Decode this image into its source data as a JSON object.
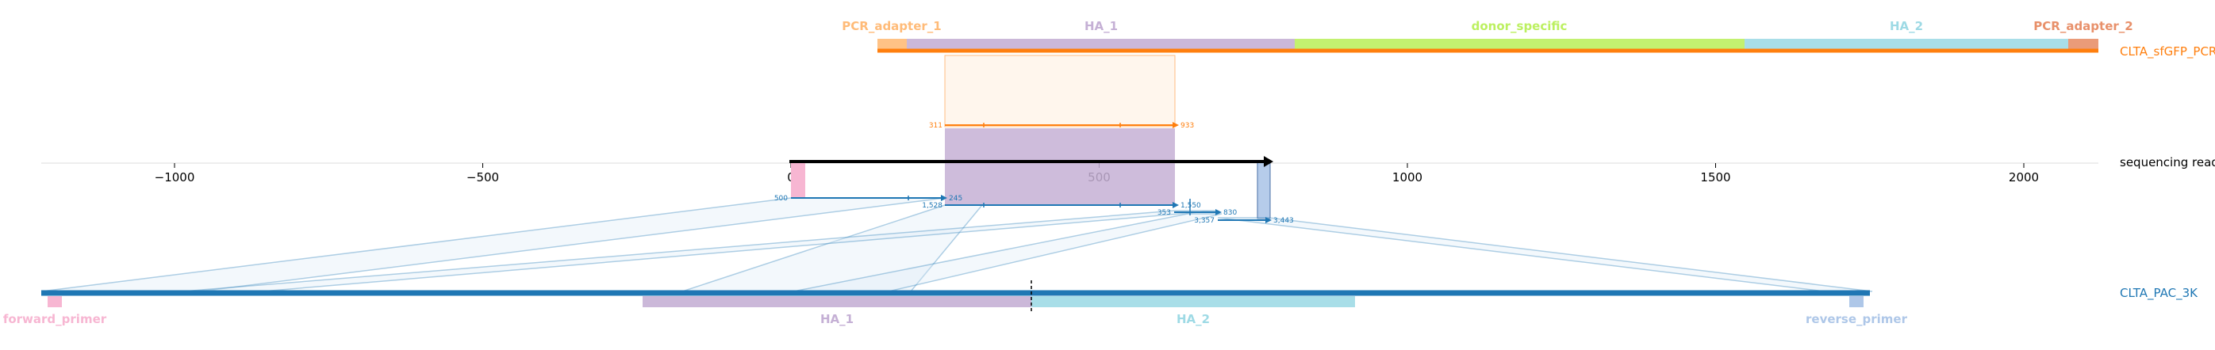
{
  "axis": {
    "ticks": [
      {
        "value": -1000,
        "label": "−1000"
      },
      {
        "value": -500,
        "label": "−500"
      },
      {
        "value": 0,
        "label": "0"
      },
      {
        "value": 500,
        "label": "500"
      },
      {
        "value": 1000,
        "label": "1000"
      },
      {
        "value": 1500,
        "label": "1500"
      },
      {
        "value": 2000,
        "label": "2000"
      }
    ]
  },
  "reference_top": {
    "label": "CLTA_sfGFP_PCR",
    "color": "#ff7f0e",
    "features": [
      {
        "name": "PCR_adapter_1",
        "color": "#ffbb78"
      },
      {
        "name": "HA_1",
        "color": "#c5b0d5"
      },
      {
        "name": "donor_specific",
        "color": "#bcf060"
      },
      {
        "name": "HA_2",
        "color": "#9edae5"
      },
      {
        "name": "PCR_adapter_2",
        "color": "#e8906a"
      }
    ]
  },
  "read": {
    "label": "sequencing read",
    "color": "#000000"
  },
  "reference_bottom": {
    "label": "CLTA_PAC_3K",
    "color": "#1f77b4",
    "features": [
      {
        "name": "forward_primer",
        "color": "#f7b6d2"
      },
      {
        "name": "HA_1",
        "color": "#c5b0d5"
      },
      {
        "name": "HA_2",
        "color": "#9edae5"
      },
      {
        "name": "reverse_primer",
        "color": "#aec7e8"
      }
    ]
  },
  "alignments": {
    "top": {
      "read_start": "311",
      "read_end": "933"
    },
    "bottom": [
      {
        "read_start": "500",
        "read_end": "245"
      },
      {
        "read_start": "1,528",
        "read_end": "1,550"
      },
      {
        "read_start": "353",
        "read_end": "830"
      },
      {
        "read_start": "3,357",
        "read_end": "3,443"
      }
    ]
  }
}
